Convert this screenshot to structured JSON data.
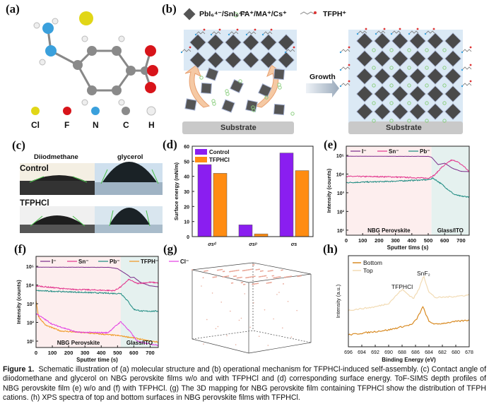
{
  "panels": {
    "a": {
      "label": "(a)",
      "atoms": [
        "Cl",
        "F",
        "N",
        "C",
        "H"
      ]
    },
    "b": {
      "label": "(b)",
      "legend": [
        "PbI₆⁴⁻/SnI₆⁴⁻",
        "FA⁺/MA⁺/Cs⁺",
        "TFPH⁺"
      ],
      "growth": "Growth",
      "substrate": "Substrate"
    },
    "c": {
      "label": "(c)",
      "cols": [
        "Diiodmethane",
        "glycerol"
      ],
      "rows": [
        "Control",
        "TFPHCl"
      ]
    },
    "d": {
      "label": "(d)"
    },
    "e": {
      "label": "(e)"
    },
    "f": {
      "label": "(f)"
    },
    "g": {
      "label": "(g)"
    },
    "h": {
      "label": "(h)"
    }
  },
  "colors": {
    "control": "#8a1ef0",
    "tfphcl": "#ff8c12",
    "I": "#7a2b8a",
    "Sn": "#e2338c",
    "Pb": "#1b8a80",
    "TFPH": "#f0961e",
    "Cl": "#e23de2",
    "bottom": "#d88a22",
    "top": "#f2dbb4",
    "pink_region": "#fdeeee",
    "teal_region": "#e5f1ef"
  },
  "chart_data": [
    {
      "id": "d",
      "type": "bar",
      "categories": [
        "σsᵈ",
        "σsᵖ",
        "σs"
      ],
      "ylabel": "Surface energy (mN/m)",
      "ylim": [
        0,
        60
      ],
      "yticks": [
        0,
        10,
        20,
        30,
        40,
        50,
        60
      ],
      "series": [
        {
          "name": "Control",
          "values": [
            47.8,
            7.8,
            55.5
          ]
        },
        {
          "name": "TFPHCl",
          "values": [
            42.0,
            1.8,
            43.8
          ]
        }
      ],
      "legend": "top-left"
    },
    {
      "id": "e",
      "type": "line",
      "yscale": "log",
      "xlabel": "Sputter tims (s)",
      "ylabel": "Intensity (counts)",
      "xlim": [
        0,
        750
      ],
      "xticks": [
        0,
        100,
        200,
        300,
        400,
        500,
        600,
        700
      ],
      "yticks": [
        "10¹",
        "10²",
        "10³",
        "10⁴",
        "10⁵"
      ],
      "regions": [
        {
          "name": "NBG Perovskite",
          "x": [
            0,
            520
          ]
        },
        {
          "name": "Glass/ITO",
          "x": [
            520,
            750
          ]
        }
      ],
      "series": [
        {
          "name": "I⁻",
          "points": [
            [
              0,
              90000
            ],
            [
              500,
              88000
            ],
            [
              520,
              80000
            ],
            [
              560,
              32000
            ],
            [
              600,
              38000
            ],
            [
              650,
              20000
            ],
            [
              700,
              14000
            ],
            [
              750,
              13500
            ]
          ]
        },
        {
          "name": "Sn⁻",
          "points": [
            [
              0,
              7500
            ],
            [
              250,
              7200
            ],
            [
              500,
              6000
            ],
            [
              540,
              9000
            ],
            [
              580,
              22000
            ],
            [
              640,
              55000
            ],
            [
              670,
              50000
            ],
            [
              720,
              25000
            ],
            [
              750,
              13000
            ]
          ]
        },
        {
          "name": "Pb⁻",
          "points": [
            [
              0,
              3500
            ],
            [
              250,
              4000
            ],
            [
              500,
              5000
            ],
            [
              530,
              6000
            ],
            [
              580,
              3000
            ],
            [
              620,
              1500
            ],
            [
              660,
              800
            ],
            [
              700,
              650
            ],
            [
              750,
              600
            ]
          ]
        }
      ]
    },
    {
      "id": "f",
      "type": "line",
      "yscale": "log",
      "xlabel": "Sputter time (s)",
      "ylabel": "Intensity (counts)",
      "xlim": [
        0,
        750
      ],
      "xticks": [
        0,
        100,
        200,
        300,
        400,
        500,
        600,
        700
      ],
      "yticks": [
        "10¹",
        "10²",
        "10³",
        "10⁴",
        "10⁵"
      ],
      "regions": [
        {
          "name": "NBG Perovskite",
          "x": [
            0,
            520
          ]
        },
        {
          "name": "Glass/ITO",
          "x": [
            520,
            750
          ]
        }
      ],
      "series": [
        {
          "name": "I⁻",
          "points": [
            [
              0,
              90000
            ],
            [
              450,
              88000
            ],
            [
              500,
              75000
            ],
            [
              560,
              35000
            ],
            [
              580,
              25000
            ],
            [
              600,
              26000
            ],
            [
              640,
              14000
            ],
            [
              700,
              9000
            ],
            [
              750,
              8000
            ]
          ]
        },
        {
          "name": "Sn⁻",
          "points": [
            [
              0,
              9000
            ],
            [
              200,
              6000
            ],
            [
              480,
              5000
            ],
            [
              520,
              8000
            ],
            [
              570,
              20000
            ],
            [
              620,
              12000
            ],
            [
              700,
              14000
            ],
            [
              750,
              13000
            ]
          ]
        },
        {
          "name": "Pb⁻",
          "points": [
            [
              0,
              5000
            ],
            [
              300,
              4000
            ],
            [
              500,
              3500
            ],
            [
              520,
              3600
            ],
            [
              560,
              1500
            ],
            [
              600,
              500
            ],
            [
              650,
              400
            ],
            [
              750,
              400
            ]
          ]
        },
        {
          "name": "TFPH⁻",
          "points": [
            [
              0,
              1500
            ],
            [
              15,
              200
            ],
            [
              60,
              70
            ],
            [
              150,
              35
            ],
            [
              300,
              28
            ],
            [
              500,
              20
            ],
            [
              600,
              15
            ],
            [
              700,
              10
            ],
            [
              750,
              9
            ]
          ]
        },
        {
          "name": "Cl⁻",
          "points": [
            [
              0,
              300
            ],
            [
              100,
              80
            ],
            [
              250,
              30
            ],
            [
              440,
              28
            ],
            [
              520,
              110
            ],
            [
              580,
              30
            ],
            [
              620,
              10
            ],
            [
              700,
              7
            ],
            [
              750,
              6
            ]
          ]
        }
      ]
    },
    {
      "id": "h",
      "type": "line",
      "xlabel": "Binding Energy (eV)",
      "ylabel": "Intensity (a.u.)",
      "xlim": [
        696,
        678
      ],
      "xticks": [
        696,
        694,
        692,
        690,
        688,
        686,
        684,
        682,
        680,
        678
      ],
      "annotations": [
        "TFPHCl",
        "SnF₂"
      ],
      "series": [
        {
          "name": "Bottom",
          "points": [
            [
              696,
              0.05
            ],
            [
              690,
              0.12
            ],
            [
              686.5,
              0.2
            ],
            [
              685.8,
              0.28
            ],
            [
              684.9,
              0.45
            ],
            [
              684,
              0.24
            ],
            [
              683,
              0.2
            ],
            [
              680,
              0.24
            ],
            [
              678,
              0.26
            ]
          ]
        },
        {
          "name": "Top",
          "points": [
            [
              696,
              0.4
            ],
            [
              692,
              0.45
            ],
            [
              690,
              0.5
            ],
            [
              689,
              0.6
            ],
            [
              688,
              0.7
            ],
            [
              687,
              0.62
            ],
            [
              686.3,
              0.57
            ],
            [
              685.5,
              0.7
            ],
            [
              684.8,
              0.9
            ],
            [
              684,
              0.66
            ],
            [
              683,
              0.58
            ],
            [
              680,
              0.6
            ],
            [
              678,
              0.62
            ]
          ]
        }
      ]
    }
  ],
  "caption": {
    "lead": "Figure 1.",
    "text": "Schematic illustration of (a) molecular structure and (b) operational mechanism for TFPHCl-induced self-assembly. (c) Contact angle of diiodomethane and glycerol on NBG perovskite films w/o and with TFPHCl and (d) corresponding surface energy. ToF-SIMS depth profiles of NBG perovskite film (e) w/o and (f) with TFPHCl. (g) The 3D mapping for NBG perovskite film containing TFPHCl show the distribution of TFPH cations. (h) XPS spectra of top and bottom surfaces in NBG perovskite films with TFPHCl."
  }
}
